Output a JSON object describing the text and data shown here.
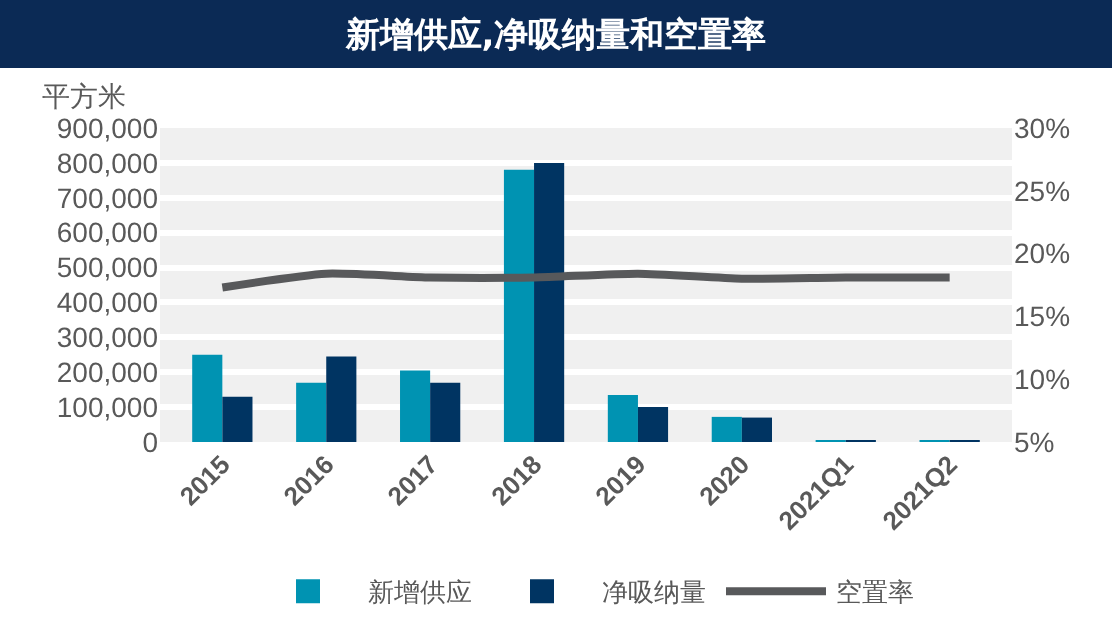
{
  "chart_data": {
    "type": "bar",
    "title": "新增供应,净吸纳量和空置率",
    "ylabel": "平方米",
    "categories": [
      "2015",
      "2016",
      "2017",
      "2018",
      "2019",
      "2020",
      "2021Q1",
      "2021Q2"
    ],
    "series": [
      {
        "name": "新增供应",
        "color": "#0093b2",
        "values": [
          250000,
          170000,
          205000,
          780000,
          135000,
          72000,
          3000,
          3000
        ]
      },
      {
        "name": "净吸纳量",
        "color": "#003462",
        "values": [
          130000,
          245000,
          170000,
          800000,
          100000,
          70000,
          3000,
          3000
        ]
      },
      {
        "name": "空置率",
        "type": "line",
        "axis": "y2",
        "color": "#58595b",
        "values": [
          17.3,
          18.4,
          18.1,
          18.1,
          18.4,
          18.0,
          18.1,
          18.1
        ]
      }
    ],
    "ylim": [
      0,
      900000
    ],
    "yticks": [
      {
        "value": 0,
        "label": "0"
      },
      {
        "value": 100000,
        "label": "100,000"
      },
      {
        "value": 200000,
        "label": "200,000"
      },
      {
        "value": 300000,
        "label": "300,000"
      },
      {
        "value": 400000,
        "label": "400,000"
      },
      {
        "value": 500000,
        "label": "500,000"
      },
      {
        "value": 600000,
        "label": "600,000"
      },
      {
        "value": 700000,
        "label": "700,000"
      },
      {
        "value": 800000,
        "label": "800,000"
      },
      {
        "value": 900000,
        "label": "900,000"
      }
    ],
    "y2lim": [
      5,
      30
    ],
    "y2ticks": [
      {
        "value": 5,
        "label": "5%"
      },
      {
        "value": 10,
        "label": "10%"
      },
      {
        "value": 15,
        "label": "15%"
      },
      {
        "value": 20,
        "label": "20%"
      },
      {
        "value": 25,
        "label": "25%"
      },
      {
        "value": 30,
        "label": "30%"
      }
    ],
    "grid": true,
    "legend": "bottom",
    "marker": "none"
  }
}
